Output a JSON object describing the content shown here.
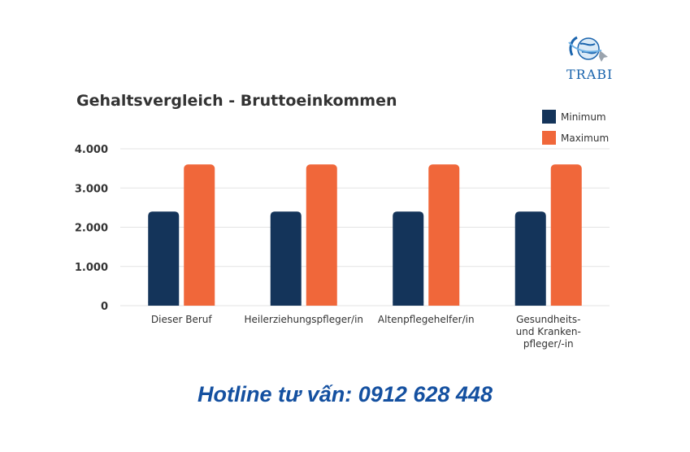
{
  "brand": {
    "name": "TRABI",
    "logo_icon": "globe-plane-icon",
    "color": "#1a64ad"
  },
  "hotline": {
    "text": "Hotline tư vấn: 0912 628 448",
    "color": "#1450a0"
  },
  "chart_data": {
    "type": "bar",
    "title": "Gehaltsvergleich - Bruttoeinkommen",
    "categories": [
      [
        "Dieser Beruf"
      ],
      [
        "Heilerziehungspfleger/in"
      ],
      [
        "Altenpflegehelfer/in"
      ],
      [
        "Gesundheits-",
        "und Kranken-",
        "pfleger/-in"
      ]
    ],
    "series": [
      {
        "name": "Minimum",
        "color": "#14345a",
        "values": [
          2400,
          2400,
          2400,
          2400
        ]
      },
      {
        "name": "Maximum",
        "color": "#f0673a",
        "values": [
          3600,
          3600,
          3600,
          3600
        ]
      }
    ],
    "ylim": [
      0,
      4000
    ],
    "yticks": [
      0,
      1000,
      2000,
      3000,
      4000
    ],
    "ytick_labels": [
      "0",
      "1.000",
      "2.000",
      "3.000",
      "4.000"
    ],
    "grid": true,
    "legend_position": "top-right"
  }
}
